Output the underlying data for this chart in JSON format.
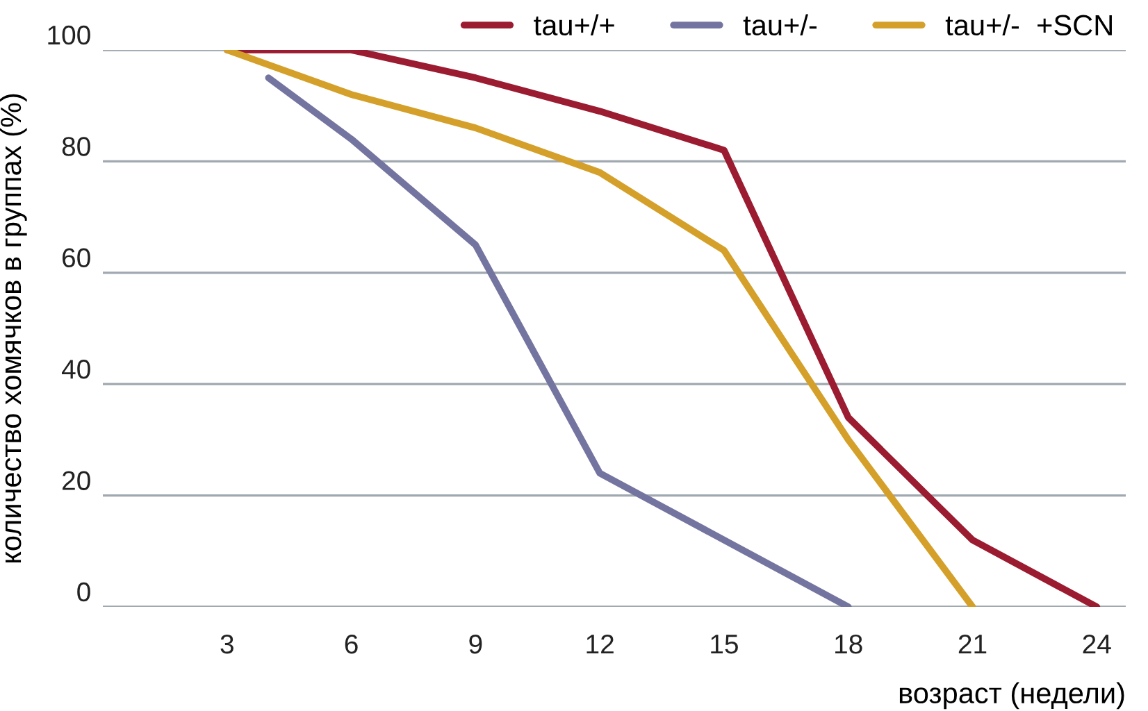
{
  "chart_data": {
    "type": "line",
    "xlabel": "возраст (недели)",
    "ylabel": "количество хомячков в группах (%)",
    "xlim": [
      0,
      24.7
    ],
    "xticks": [
      3,
      6,
      9,
      12,
      15,
      18,
      21,
      24
    ],
    "ylim": [
      0,
      100
    ],
    "yticks": [
      0,
      20,
      40,
      60,
      80,
      100
    ],
    "grid": "y",
    "legend": "top right",
    "marker": "none",
    "line_style": "solid",
    "series": [
      {
        "name": "tau+/+",
        "color": "#9b1b30",
        "x": [
          3,
          6,
          9,
          12,
          15,
          18,
          21,
          24
        ],
        "values": [
          100,
          100,
          95,
          89,
          82,
          34,
          12,
          0
        ]
      },
      {
        "name": "tau+/-",
        "color": "#7474a0",
        "x": [
          4,
          6,
          9,
          12,
          15,
          18
        ],
        "values": [
          95,
          84,
          65,
          24,
          12,
          0
        ]
      },
      {
        "name": "tau+/-  +SCN",
        "color": "#d4a02a",
        "x": [
          3,
          6,
          9,
          12,
          15,
          18,
          21
        ],
        "values": [
          100,
          92,
          86,
          78,
          64,
          30,
          0
        ]
      }
    ]
  }
}
